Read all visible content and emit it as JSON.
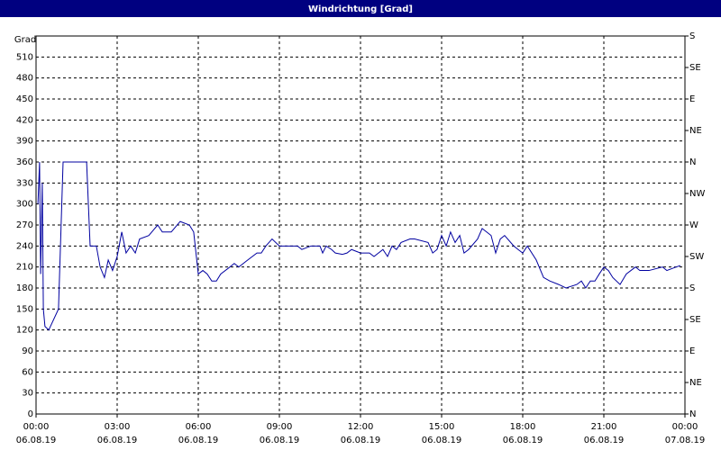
{
  "chart_data": {
    "type": "line",
    "title": "Windrichtung [Grad]",
    "ylabel": "Grad",
    "xlim": [
      0,
      24
    ],
    "xticks": [
      {
        "value": 0,
        "label": "00:00",
        "date": "06.08.19"
      },
      {
        "value": 3,
        "label": "03:00",
        "date": "06.08.19"
      },
      {
        "value": 6,
        "label": "06:00",
        "date": "06.08.19"
      },
      {
        "value": 9,
        "label": "09:00",
        "date": "06.08.19"
      },
      {
        "value": 12,
        "label": "12:00",
        "date": "06.08.19"
      },
      {
        "value": 15,
        "label": "15:00",
        "date": "06.08.19"
      },
      {
        "value": 18,
        "label": "18:00",
        "date": "06.08.19"
      },
      {
        "value": 21,
        "label": "21:00",
        "date": "06.08.19"
      },
      {
        "value": 24,
        "label": "00:00",
        "date": "07.08.19"
      }
    ],
    "ylim": [
      0,
      540
    ],
    "yticks": [
      0,
      30,
      60,
      90,
      120,
      150,
      180,
      210,
      240,
      270,
      300,
      330,
      360,
      390,
      420,
      450,
      480,
      510
    ],
    "y2lim": [
      0,
      540
    ],
    "y2ticks": [
      {
        "value": 0,
        "label": "N"
      },
      {
        "value": 45,
        "label": "NE"
      },
      {
        "value": 90,
        "label": "E"
      },
      {
        "value": 135,
        "label": "SE"
      },
      {
        "value": 180,
        "label": "S"
      },
      {
        "value": 225,
        "label": "SW"
      },
      {
        "value": 270,
        "label": "W"
      },
      {
        "value": 315,
        "label": "NW"
      },
      {
        "value": 360,
        "label": "N"
      },
      {
        "value": 405,
        "label": "NE"
      },
      {
        "value": 450,
        "label": "E"
      },
      {
        "value": 495,
        "label": "SE"
      },
      {
        "value": 540,
        "label": "S"
      }
    ],
    "grid": true,
    "color": "#0000a0",
    "x": [
      0.07,
      0.13,
      0.17,
      0.23,
      0.27,
      0.33,
      0.47,
      0.83,
      1.0,
      1.87,
      2.0,
      2.23,
      2.37,
      2.53,
      2.67,
      2.83,
      3.0,
      3.17,
      3.33,
      3.5,
      3.67,
      3.83,
      4.17,
      4.5,
      4.67,
      5.0,
      5.33,
      5.67,
      5.83,
      6.0,
      6.17,
      6.33,
      6.5,
      6.67,
      6.83,
      7.17,
      7.33,
      7.5,
      7.83,
      8.17,
      8.33,
      8.5,
      8.73,
      9.0,
      9.33,
      9.67,
      9.83,
      10.17,
      10.5,
      10.6,
      10.73,
      10.93,
      11.07,
      11.33,
      11.5,
      11.67,
      12.0,
      12.33,
      12.5,
      12.83,
      13.0,
      13.17,
      13.33,
      13.5,
      13.83,
      14.0,
      14.5,
      14.67,
      14.83,
      15.0,
      15.17,
      15.33,
      15.5,
      15.67,
      15.83,
      16.0,
      16.33,
      16.5,
      16.83,
      17.0,
      17.17,
      17.33,
      17.67,
      17.83,
      18.0,
      18.17,
      18.5,
      18.77,
      19.0,
      19.33,
      19.6,
      20.0,
      20.17,
      20.33,
      20.5,
      20.67,
      20.83,
      21.0,
      21.17,
      21.33,
      21.6,
      21.83,
      22.17,
      22.33,
      22.67,
      23.17,
      23.33,
      23.67,
      23.83
    ],
    "values": [
      300,
      360,
      200,
      330,
      150,
      125,
      120,
      150,
      360,
      360,
      240,
      240,
      210,
      195,
      220,
      205,
      225,
      260,
      230,
      240,
      230,
      250,
      255,
      270,
      260,
      260,
      275,
      270,
      260,
      200,
      205,
      200,
      190,
      190,
      200,
      210,
      215,
      210,
      220,
      230,
      230,
      240,
      250,
      240,
      240,
      240,
      235,
      240,
      240,
      230,
      240,
      235,
      230,
      228,
      230,
      235,
      230,
      230,
      225,
      235,
      225,
      240,
      235,
      245,
      250,
      250,
      245,
      230,
      235,
      255,
      240,
      260,
      245,
      255,
      230,
      235,
      250,
      265,
      255,
      230,
      250,
      255,
      240,
      235,
      230,
      240,
      220,
      195,
      190,
      185,
      180,
      185,
      190,
      180,
      190,
      190,
      200,
      210,
      205,
      195,
      185,
      200,
      210,
      205,
      205,
      210,
      205,
      210,
      212
    ]
  }
}
